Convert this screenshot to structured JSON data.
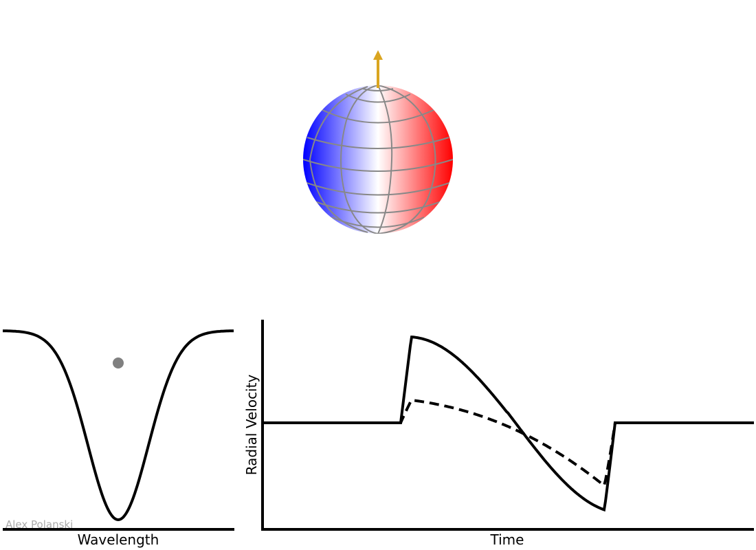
{
  "star": {
    "colors": {
      "approaching": "#0000ff",
      "center": "#ffffff",
      "receding": "#ff0000",
      "grid": "#888888",
      "spin_arrow": "#daa520"
    }
  },
  "line_profile": {
    "xlabel": "Wavelength",
    "line_color": "#000000",
    "marker_color": "#808080"
  },
  "rv_curve": {
    "xlabel": "Time",
    "ylabel": "Radial Velocity",
    "series": [
      {
        "style": "solid"
      },
      {
        "style": "dashed"
      }
    ]
  },
  "credit": "Alex Polanski"
}
